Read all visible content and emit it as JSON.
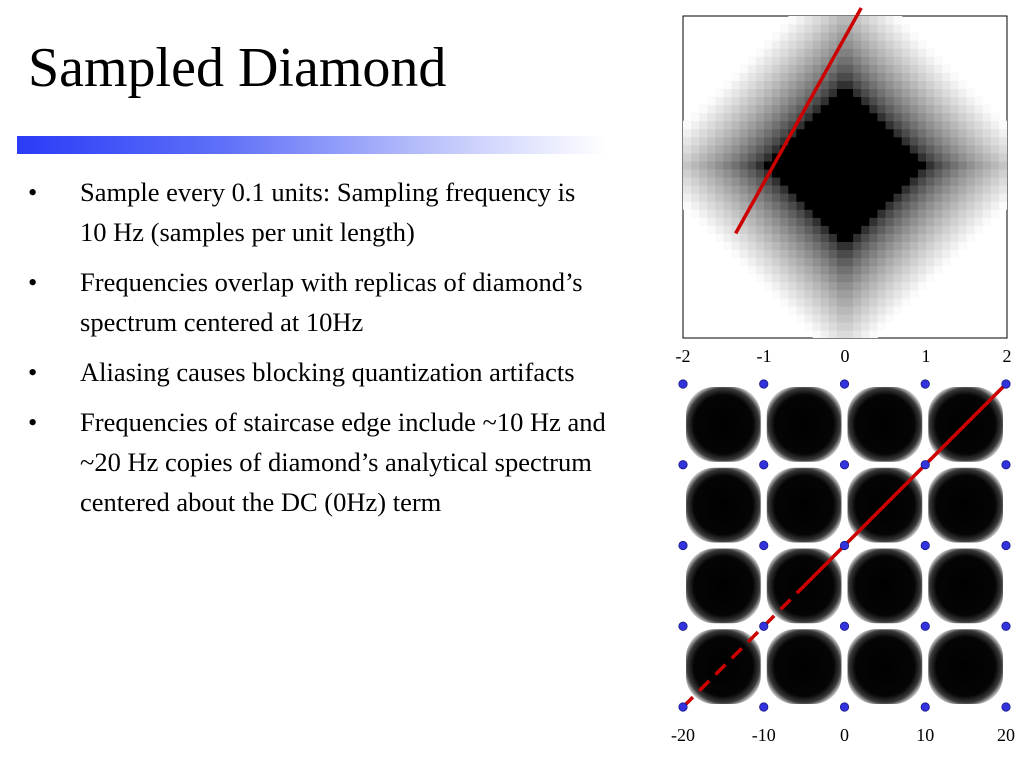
{
  "slide": {
    "title": "Sampled Diamond",
    "accent_color": "#2a3cf7",
    "bullets": [
      "Sample every 0.1 units:  Sampling frequency is 10 Hz (samples per unit length)",
      "Frequencies overlap with replicas of diamond’s spectrum centered at 10Hz",
      "Aliasing causes blocking quantization artifacts",
      "Frequencies of staircase edge include ~10 Hz and ~20 Hz copies of diamond’s analytical spectrum centered about the DC (0Hz) term"
    ],
    "bullet_symbol": "•"
  },
  "chart_data": [
    {
      "type": "heatmap",
      "title": "",
      "xlabel": "",
      "ylabel": "",
      "x_ticks": [
        "-2",
        "-1",
        "0",
        "1",
        "2"
      ],
      "xlim": [
        -2,
        2
      ],
      "ylim": [
        -2,
        2
      ],
      "content": "pixelated blurred diamond (black center fading to white), sampled every 0.1 units",
      "grid": false,
      "line": {
        "color": "#cc0000",
        "style": "solid",
        "from": [
          -1.35,
          -0.7
        ],
        "to": [
          0.2,
          2.1
        ]
      }
    },
    {
      "type": "heatmap",
      "title": "",
      "xlabel": "",
      "ylabel": "",
      "x_ticks": [
        "-20",
        "-10",
        "0",
        "10",
        "20"
      ],
      "xlim": [
        -20,
        20
      ],
      "ylim": [
        -20,
        20
      ],
      "content": "4x4 grid of spectrum replicas (rounded black squares)",
      "sample_points": {
        "color": "#3333dd",
        "x": [
          -20,
          -10,
          0,
          10,
          20
        ],
        "y": [
          -20,
          -10,
          0,
          10,
          20
        ]
      },
      "grid": false,
      "line": {
        "color": "#cc0000",
        "style": "dashed-then-solid",
        "from": [
          -20,
          -20
        ],
        "to": [
          20,
          20
        ],
        "solid_from": [
          -5,
          -5
        ]
      }
    }
  ]
}
